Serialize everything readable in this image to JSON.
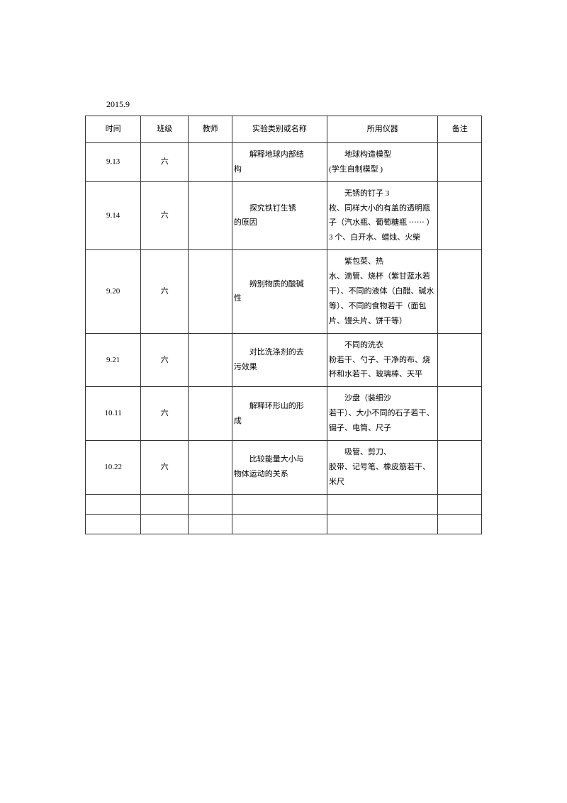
{
  "date_label": "2015.9",
  "headers": {
    "time": "时间",
    "class": "班级",
    "teacher": "教师",
    "experiment": "实验类别或名称",
    "equipment": "所用仪器",
    "note": "备注"
  },
  "rows": [
    {
      "time": "9.13",
      "class": "六",
      "teacher": "",
      "experiment_first": "解释地球内部结",
      "experiment_rest": "构",
      "equipment_first": "地球构造模型",
      "equipment_rest": "(学生自制模型  )",
      "note": ""
    },
    {
      "time": "9.14",
      "class": "六",
      "teacher": "",
      "experiment_first": "探究铁钉生锈",
      "experiment_rest": "的原因",
      "equipment_first": "无锈的钉子  3",
      "equipment_rest": "枚、同样大小的有盖的透明瓶子（汽水瓶、葡萄糖瓶 ⋯⋯  ）3 个、白开水、蜡烛、火柴",
      "note": ""
    },
    {
      "time": "9.20",
      "class": "六",
      "teacher": "",
      "experiment_first": "辨别物质的酸碱",
      "experiment_rest": "性",
      "equipment_first": "紫包菜、热",
      "equipment_rest": "水、滴管、烧杯（紫甘蓝水若干）、不同的液体（白醋、碱水等）、不同的食物若干（面包片、馒头片、饼干等）",
      "note": ""
    },
    {
      "time": "9.21",
      "class": "六",
      "teacher": "",
      "experiment_first": "对比洗涤剂的去",
      "experiment_rest": "污效果",
      "equipment_first": "不同的洗衣",
      "equipment_rest": "粉若干、勺子、干净的布、烧杯和水若干、玻璃棒、天平",
      "note": ""
    },
    {
      "time": "10.11",
      "class": "六",
      "teacher": "",
      "experiment_first": "解释环形山的形",
      "experiment_rest": "成",
      "equipment_first": "沙盘（装细沙",
      "equipment_rest": "若干）、大小不同的石子若干、镊子、电筒、尺子",
      "note": ""
    },
    {
      "time": "10.22",
      "class": "六",
      "teacher": "",
      "experiment_first": "比较能量大小与",
      "experiment_rest": "物体运动的关系",
      "equipment_first": "吸管、剪刀、",
      "equipment_rest": "胶带、记号笔、橡皮筋若干、米尺",
      "note": ""
    }
  ]
}
